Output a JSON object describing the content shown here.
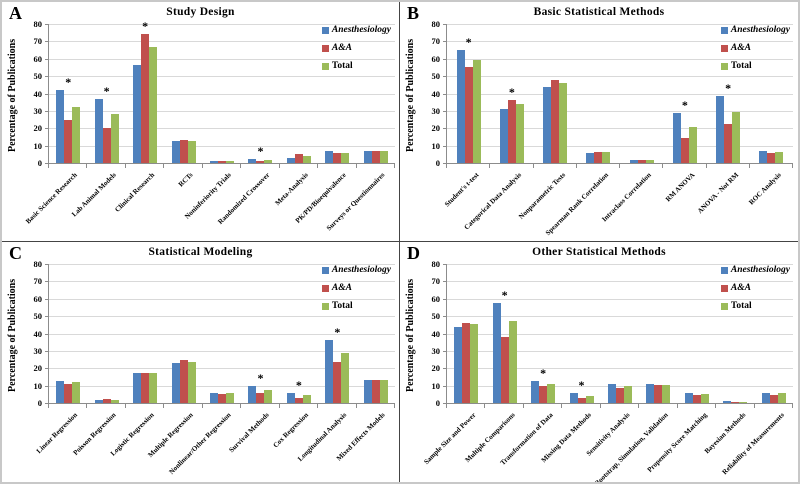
{
  "figure": {
    "ylabel": "Percentage of Publications",
    "star_symbol": "*",
    "grid_color": "#d9d9d9",
    "axis_color": "#8c8c8c"
  },
  "series": [
    {
      "name": "Anesthesiology",
      "color": "#4F81BD"
    },
    {
      "name": "A&A",
      "color": "#C0504D"
    },
    {
      "name": "Total",
      "color": "#9BBB59"
    }
  ],
  "chart_data": [
    {
      "type": "bar",
      "panel_label": "A",
      "title": "Study Design",
      "ylabel": "Percentage of Publications",
      "ylim": [
        0,
        80
      ],
      "ytick_step": 10,
      "grid": true,
      "legend_position": "top-right",
      "categories": [
        "Basic Science Research",
        "Lab Animal Models",
        "Clinical Research",
        "RCTs",
        "Noninferiority Trials",
        "Randomized Crossover",
        "Meta-Analysis",
        "PK/PD/Bioequivalence",
        "Surveys or Questionnaires"
      ],
      "series": [
        {
          "name": "Anesthesiology",
          "values": [
            42,
            37,
            56.5,
            12.5,
            1,
            2.5,
            3,
            7,
            7
          ]
        },
        {
          "name": "A&A",
          "values": [
            24.5,
            20,
            74.5,
            13.5,
            1,
            1,
            5,
            5.5,
            7
          ]
        },
        {
          "name": "Total",
          "values": [
            32.5,
            28,
            66.5,
            12.5,
            1,
            1.5,
            4,
            6,
            7
          ]
        }
      ],
      "starred_categories": [
        "Basic Science Research",
        "Lab Animal Models",
        "Clinical Research",
        "Randomized Crossover"
      ]
    },
    {
      "type": "bar",
      "panel_label": "B",
      "title": "Basic Statistical Methods",
      "ylabel": "Percentage of Publications",
      "ylim": [
        0,
        80
      ],
      "ytick_step": 10,
      "grid": true,
      "legend_position": "top-right",
      "categories": [
        "Student's t-test",
        "Categorical Data Analysis",
        "Nonparametric Tests",
        "Spearman Rank Correlation",
        "Intraclass Correlation",
        "RM ANOVA",
        "ANOVA - Not RM",
        "ROC Analysis"
      ],
      "series": [
        {
          "name": "Anesthesiology",
          "values": [
            65,
            31,
            44,
            6,
            1.5,
            29,
            38.5,
            7
          ]
        },
        {
          "name": "A&A",
          "values": [
            55,
            36.5,
            47.5,
            6.5,
            2,
            14.5,
            22.5,
            6
          ]
        },
        {
          "name": "Total",
          "values": [
            59.5,
            34,
            46,
            6.5,
            2,
            21,
            29.5,
            6.5
          ]
        }
      ],
      "starred_categories": [
        "Student's t-test",
        "Categorical Data Analysis",
        "RM ANOVA",
        "ANOVA - Not RM"
      ]
    },
    {
      "type": "bar",
      "panel_label": "C",
      "title": "Statistical Modeling",
      "ylabel": "Percentage of Publications",
      "ylim": [
        0,
        80
      ],
      "ytick_step": 10,
      "grid": true,
      "legend_position": "top-right",
      "categories": [
        "Linear Regression",
        "Poisson Regression",
        "Logistic Regression",
        "Multiple Regression",
        "Nonlinear/Other Regression",
        "Survival Methods",
        "Cox Regression",
        "Longitudinal Analysis",
        "Mixed Effects Models"
      ],
      "series": [
        {
          "name": "Anesthesiology",
          "values": [
            12.5,
            1.5,
            17.5,
            23,
            6,
            10,
            5.5,
            36,
            13.5
          ]
        },
        {
          "name": "A&A",
          "values": [
            11,
            2.5,
            17,
            24.5,
            5,
            6,
            3,
            23.5,
            13.5
          ]
        },
        {
          "name": "Total",
          "values": [
            12,
            2,
            17,
            23.5,
            5.5,
            7.5,
            4.5,
            29,
            13.5
          ]
        }
      ],
      "starred_categories": [
        "Survival Methods",
        "Cox Regression",
        "Longitudinal Analysis"
      ]
    },
    {
      "type": "bar",
      "panel_label": "D",
      "title": "Other Statistical Methods",
      "ylabel": "Percentage of Publications",
      "ylim": [
        0,
        80
      ],
      "ytick_step": 10,
      "grid": true,
      "legend_position": "top-right",
      "categories": [
        "Sample Size and Power",
        "Multiple Comparisons",
        "Transformation of Data",
        "Missing Data Methods",
        "Sensitivity Analysis",
        "Bootstrap, Simulation, Validation",
        "Propensity Score Matching",
        "Bayesian Methods",
        "Reliability of Measurements"
      ],
      "series": [
        {
          "name": "Anesthesiology",
          "values": [
            44,
            57.5,
            12.5,
            5.5,
            11,
            11,
            5.5,
            1,
            5.5
          ]
        },
        {
          "name": "A&A",
          "values": [
            46,
            38,
            9.5,
            3,
            8.5,
            10.5,
            4.5,
            0.5,
            4.5
          ]
        },
        {
          "name": "Total",
          "values": [
            45.5,
            47,
            11,
            4,
            10,
            10.5,
            5,
            0.5,
            5.5
          ]
        }
      ],
      "starred_categories": [
        "Multiple Comparisons",
        "Transformation of Data",
        "Missing Data Methods"
      ]
    }
  ]
}
